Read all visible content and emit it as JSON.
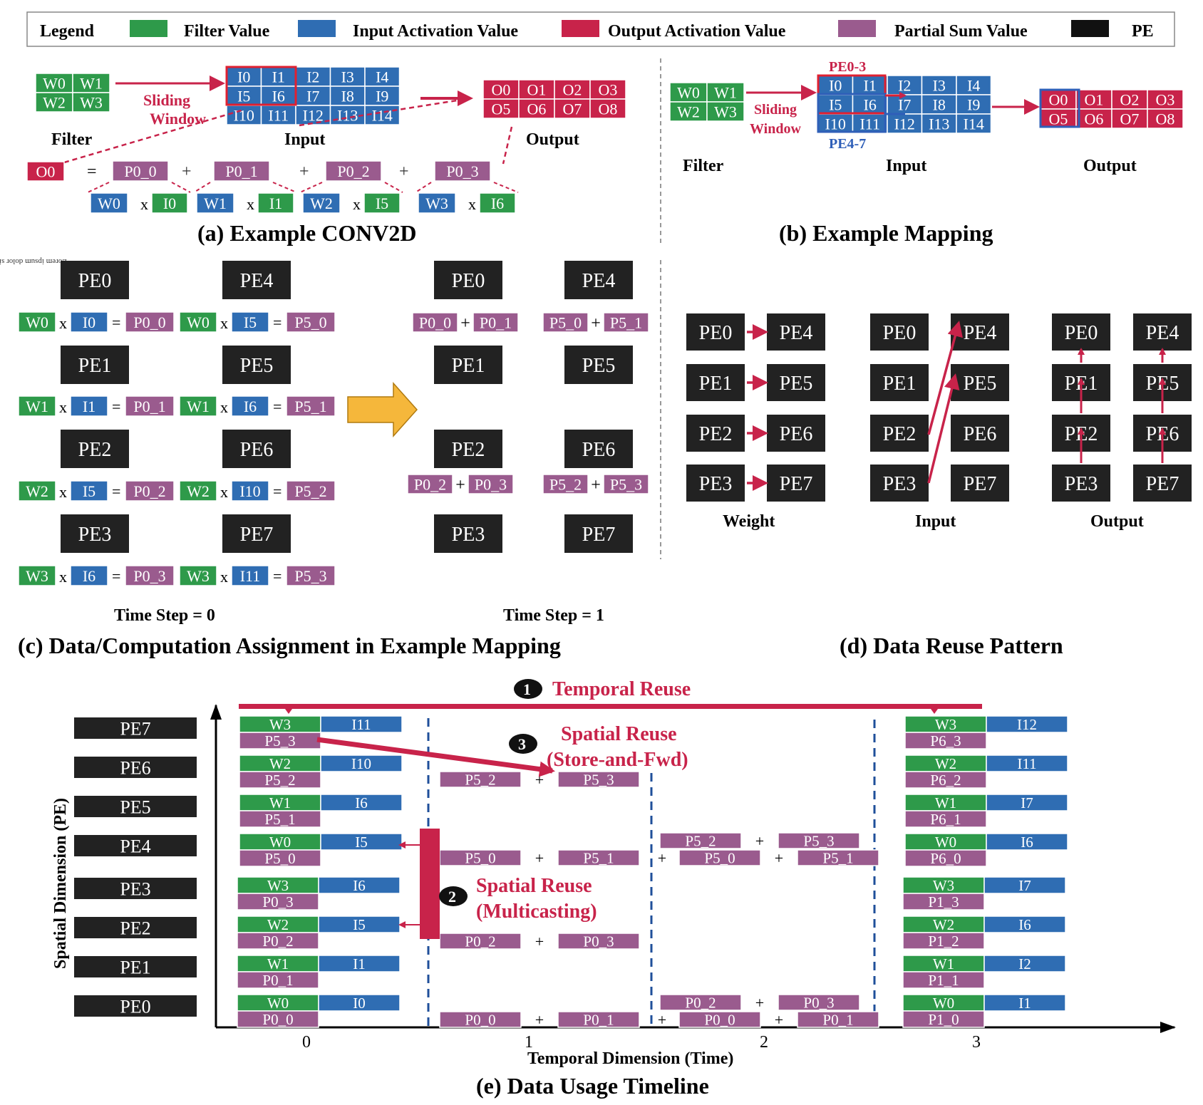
{
  "colors": {
    "filter": "#2e9a4a",
    "input": "#2f6db3",
    "output": "#c8234a",
    "psum": "#9a5b8e",
    "pe": "#222222",
    "arrow_orange": "#f5b73b",
    "dashed_blue": "#1f4f9a"
  },
  "legend": {
    "title": "Legend",
    "filter": "Filter Value",
    "input": "Input Activation Value",
    "output": "Output Activation Value",
    "psum": "Partial Sum Value",
    "pe": "PE"
  },
  "panel_a": {
    "caption": "(a) Example CONV2D",
    "filter_label": "Filter",
    "input_label": "Input",
    "output_label": "Output",
    "sliding": "Sliding",
    "window": "Window",
    "filter_cells": [
      "W0",
      "W1",
      "W2",
      "W3"
    ],
    "input_cells": [
      "I0",
      "I1",
      "I2",
      "I3",
      "I4",
      "I5",
      "I6",
      "I7",
      "I8",
      "I9",
      "I10",
      "I11",
      "I12",
      "I13",
      "I14"
    ],
    "output_cells": [
      "O0",
      "O1",
      "O2",
      "O3",
      "O5",
      "O6",
      "O7",
      "O8"
    ],
    "eq_out": "O0",
    "eq_sign": "=",
    "plus": "+",
    "times": "x",
    "psums": [
      "P0_0",
      "P0_1",
      "P0_2",
      "P0_3"
    ],
    "weights": [
      "W0",
      "W1",
      "W2",
      "W3"
    ],
    "inputs": [
      "I0",
      "I1",
      "I5",
      "I6"
    ]
  },
  "panel_b": {
    "caption": "(b) Example Mapping",
    "filter_label": "Filter",
    "input_label": "Input",
    "output_label": "Output",
    "sliding": "Sliding",
    "window": "Window",
    "pe_a": "PE0-3",
    "pe_b": "PE4-7"
  },
  "panel_c": {
    "caption": "(c) Data/Computation Assignment in Example Mapping",
    "note": "Lorem ipsum dolor sit amet,",
    "step0": "Time Step = 0",
    "step1": "Time Step = 1",
    "pes_left": [
      "PE0",
      "PE1",
      "PE2",
      "PE3"
    ],
    "pes_right": [
      "PE4",
      "PE5",
      "PE6",
      "PE7"
    ],
    "rows_left": [
      {
        "w": "W0",
        "i": "I0",
        "p": "P0_0"
      },
      {
        "w": "W1",
        "i": "I1",
        "p": "P0_1"
      },
      {
        "w": "W2",
        "i": "I5",
        "p": "P0_2"
      },
      {
        "w": "W3",
        "i": "I6",
        "p": "P0_3"
      }
    ],
    "rows_right": [
      {
        "w": "W0",
        "i": "I5",
        "p": "P5_0"
      },
      {
        "w": "W1",
        "i": "I6",
        "p": "P5_1"
      },
      {
        "w": "W2",
        "i": "I10",
        "p": "P5_2"
      },
      {
        "w": "W3",
        "i": "I11",
        "p": "P5_3"
      }
    ],
    "t1_sums": [
      {
        "a": "P0_0",
        "b": "P0_1"
      },
      {
        "a": "P5_0",
        "b": "P5_1"
      },
      {
        "a": "P0_2",
        "b": "P0_3"
      },
      {
        "a": "P5_2",
        "b": "P5_3"
      }
    ]
  },
  "panel_d": {
    "caption": "(d) Data Reuse Pattern",
    "weight_label": "Weight",
    "input_label": "Input",
    "output_label": "Output"
  },
  "panel_e": {
    "caption": "(e) Data Usage Timeline",
    "x_axis": "Temporal Dimension (Time)",
    "y_axis": "Spatial Dimension (PE)",
    "ticks": [
      "0",
      "1",
      "2",
      "3"
    ],
    "pe_labels": [
      "PE7",
      "PE6",
      "PE5",
      "PE4",
      "PE3",
      "PE2",
      "PE1",
      "PE0"
    ],
    "badge1": "1",
    "badge2": "2",
    "badge3": "3",
    "temporal_reuse": "Temporal Reuse",
    "spatial_reuse": "Spatial Reuse",
    "store_fwd": "(Store-and-Fwd)",
    "multicasting": "(Multicasting)",
    "t0": [
      {
        "w": "W3",
        "i": "I11",
        "p": "P5_3"
      },
      {
        "w": "W2",
        "i": "I10",
        "p": "P5_2"
      },
      {
        "w": "W1",
        "i": "I6",
        "p": "P5_1"
      },
      {
        "w": "W0",
        "i": "I5",
        "p": "P5_0"
      },
      {
        "w": "W3",
        "i": "I6",
        "p": "P0_3"
      },
      {
        "w": "W2",
        "i": "I5",
        "p": "P0_2"
      },
      {
        "w": "W1",
        "i": "I1",
        "p": "P0_1"
      },
      {
        "w": "W0",
        "i": "I0",
        "p": "P0_0"
      }
    ],
    "t3": [
      {
        "w": "W3",
        "i": "I12",
        "p": "P6_3"
      },
      {
        "w": "W2",
        "i": "I11",
        "p": "P6_2"
      },
      {
        "w": "W1",
        "i": "I7",
        "p": "P6_1"
      },
      {
        "w": "W0",
        "i": "I6",
        "p": "P6_0"
      },
      {
        "w": "W3",
        "i": "I7",
        "p": "P1_3"
      },
      {
        "w": "W2",
        "i": "I6",
        "p": "P1_2"
      },
      {
        "w": "W1",
        "i": "I2",
        "p": "P1_1"
      },
      {
        "w": "W0",
        "i": "I1",
        "p": "P1_0"
      }
    ],
    "t1": {
      "pe6": {
        "a": "P5_2",
        "b": "P5_3"
      },
      "pe4": {
        "a": "P5_0",
        "b": "P5_1"
      },
      "pe2": {
        "a": "P0_2",
        "b": "P0_3"
      },
      "pe0": {
        "a": "P0_0",
        "b": "P0_1"
      }
    },
    "t2": {
      "pe4_top": {
        "a": "P5_2",
        "b": "P5_3"
      },
      "pe4_bot": {
        "a": "P5_0",
        "b": "P5_1"
      },
      "pe0_top": {
        "a": "P0_2",
        "b": "P0_3"
      },
      "pe0_bot": {
        "a": "P0_0",
        "b": "P0_1"
      }
    }
  }
}
